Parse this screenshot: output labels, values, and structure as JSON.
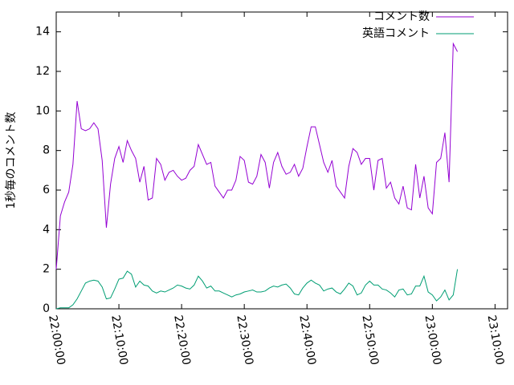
{
  "chart_data": {
    "type": "line",
    "y_label": "1秒毎のコメント数",
    "x": [
      "22:00:00",
      "22:00:40",
      "22:01:20",
      "22:02:00",
      "22:02:40",
      "22:03:20",
      "22:04:00",
      "22:04:40",
      "22:05:20",
      "22:06:00",
      "22:06:40",
      "22:07:20",
      "22:08:00",
      "22:08:40",
      "22:09:20",
      "22:10:00",
      "22:10:40",
      "22:11:20",
      "22:12:00",
      "22:12:40",
      "22:13:20",
      "22:14:00",
      "22:14:40",
      "22:15:20",
      "22:16:00",
      "22:16:40",
      "22:17:20",
      "22:18:00",
      "22:18:40",
      "22:19:20",
      "22:20:00",
      "22:20:40",
      "22:21:20",
      "22:22:00",
      "22:22:40",
      "22:23:20",
      "22:24:00",
      "22:24:40",
      "22:25:20",
      "22:26:00",
      "22:26:40",
      "22:27:20",
      "22:28:00",
      "22:28:40",
      "22:29:20",
      "22:30:00",
      "22:30:40",
      "22:31:20",
      "22:32:00",
      "22:32:40",
      "22:33:20",
      "22:34:00",
      "22:34:40",
      "22:35:20",
      "22:36:00",
      "22:36:40",
      "22:37:20",
      "22:38:00",
      "22:38:40",
      "22:39:20",
      "22:40:00",
      "22:40:40",
      "22:41:20",
      "22:42:00",
      "22:42:40",
      "22:43:20",
      "22:44:00",
      "22:44:40",
      "22:45:20",
      "22:46:00",
      "22:46:40",
      "22:47:20",
      "22:48:00",
      "22:48:40",
      "22:49:20",
      "22:50:00",
      "22:50:40",
      "22:51:20",
      "22:52:00",
      "22:52:40",
      "22:53:20",
      "22:54:00",
      "22:54:40",
      "22:55:20",
      "22:56:00",
      "22:56:40",
      "22:57:20",
      "22:58:00",
      "22:58:40",
      "22:59:20",
      "23:00:00",
      "23:00:40",
      "23:01:20",
      "23:02:00",
      "23:02:40",
      "23:03:20",
      "23:04:00"
    ],
    "series": [
      {
        "name": "コメント数",
        "color": "#9400d3",
        "values": [
          2.0,
          4.7,
          5.4,
          5.9,
          7.3,
          10.5,
          9.1,
          9.0,
          9.1,
          9.4,
          9.1,
          7.5,
          4.1,
          6.3,
          7.6,
          8.2,
          7.4,
          8.5,
          8.0,
          7.6,
          6.4,
          7.2,
          5.5,
          5.6,
          7.6,
          7.3,
          6.5,
          6.9,
          7.0,
          6.7,
          6.5,
          6.6,
          7.0,
          7.2,
          8.3,
          7.8,
          7.3,
          7.4,
          6.2,
          5.9,
          5.6,
          6.0,
          6.0,
          6.5,
          7.7,
          7.5,
          6.4,
          6.3,
          6.7,
          7.8,
          7.4,
          6.1,
          7.4,
          7.9,
          7.2,
          6.8,
          6.9,
          7.3,
          6.7,
          7.1,
          8.2,
          9.2,
          9.2,
          8.3,
          7.4,
          6.9,
          7.5,
          6.2,
          5.9,
          5.6,
          7.2,
          8.1,
          7.9,
          7.3,
          7.6,
          7.6,
          6.0,
          7.5,
          7.6,
          6.1,
          6.4,
          5.6,
          5.3,
          6.2,
          5.1,
          5.0,
          7.3,
          5.6,
          6.7,
          5.1,
          4.8,
          7.4,
          7.6,
          8.9,
          6.4,
          13.4,
          13.0
        ]
      },
      {
        "name": "英語コメント",
        "color": "#009e73",
        "values": [
          0,
          0.05,
          0.05,
          0.05,
          0.2,
          0.5,
          0.9,
          1.3,
          1.4,
          1.45,
          1.4,
          1.1,
          0.5,
          0.55,
          1.0,
          1.5,
          1.55,
          1.9,
          1.75,
          1.1,
          1.4,
          1.2,
          1.15,
          0.9,
          0.8,
          0.9,
          0.85,
          0.95,
          1.05,
          1.2,
          1.15,
          1.05,
          1.0,
          1.2,
          1.65,
          1.4,
          1.05,
          1.15,
          0.9,
          0.9,
          0.8,
          0.7,
          0.6,
          0.7,
          0.75,
          0.85,
          0.9,
          0.95,
          0.85,
          0.85,
          0.9,
          1.05,
          1.15,
          1.1,
          1.2,
          1.25,
          1.05,
          0.75,
          0.7,
          1.05,
          1.3,
          1.45,
          1.3,
          1.2,
          0.9,
          1.0,
          1.05,
          0.85,
          0.75,
          1.0,
          1.3,
          1.15,
          0.7,
          0.8,
          1.2,
          1.4,
          1.2,
          1.2,
          1.0,
          0.95,
          0.8,
          0.6,
          0.95,
          1.0,
          0.7,
          0.75,
          1.15,
          1.15,
          1.65,
          0.85,
          0.7,
          0.4,
          0.6,
          0.95,
          0.45,
          0.7,
          2.0
        ]
      }
    ],
    "xlim": [
      "22:00:00",
      "23:12:00"
    ],
    "xticks": [
      "22:00:00",
      "22:10:00",
      "22:20:00",
      "22:30:00",
      "22:40:00",
      "22:50:00",
      "23:00:00",
      "23:10:00"
    ],
    "ylim": [
      0,
      15
    ],
    "yticks": [
      0,
      2,
      4,
      6,
      8,
      10,
      12,
      14
    ],
    "legend": "top-right"
  }
}
